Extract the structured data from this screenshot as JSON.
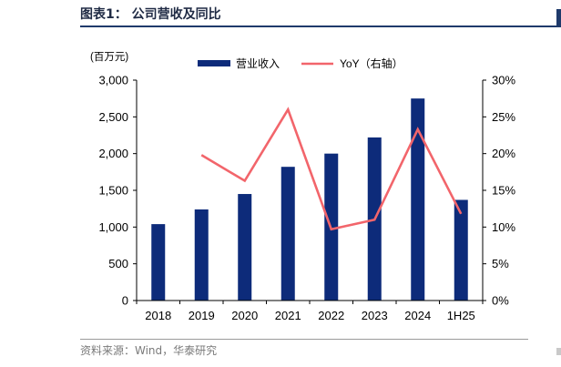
{
  "page": {
    "title": "图表1：  公司营收及同比",
    "source": "资料来源：Wind，华泰研究"
  },
  "colors": {
    "bar": "#0d2b7a",
    "line": "#f2656b",
    "rule": "#1f3a6b"
  },
  "chart_data": {
    "type": "bar",
    "unit_label": "(百万元)",
    "categories": [
      "2018",
      "2019",
      "2020",
      "2021",
      "2022",
      "2023",
      "2024",
      "1H25"
    ],
    "series": [
      {
        "name": "营业收入",
        "type": "bar",
        "axis": "left",
        "values": [
          1040,
          1240,
          1450,
          1820,
          2000,
          2220,
          2750,
          1370
        ]
      },
      {
        "name": "YoY（右轴）",
        "type": "line",
        "axis": "right",
        "values": [
          null,
          19.8,
          16.3,
          26.0,
          9.7,
          11.0,
          23.3,
          11.8
        ]
      }
    ],
    "yleft": {
      "min": 0,
      "max": 3000,
      "ticks": [
        0,
        500,
        1000,
        1500,
        2000,
        2500,
        3000
      ],
      "tick_labels": [
        "0",
        "500",
        "1,000",
        "1,500",
        "2,000",
        "2,500",
        "3,000"
      ]
    },
    "yright": {
      "min": 0,
      "max": 30,
      "ticks": [
        0,
        5,
        10,
        15,
        20,
        25,
        30
      ],
      "tick_labels": [
        "0%",
        "5%",
        "10%",
        "15%",
        "20%",
        "25%",
        "30%"
      ]
    },
    "legend_position": "top"
  }
}
